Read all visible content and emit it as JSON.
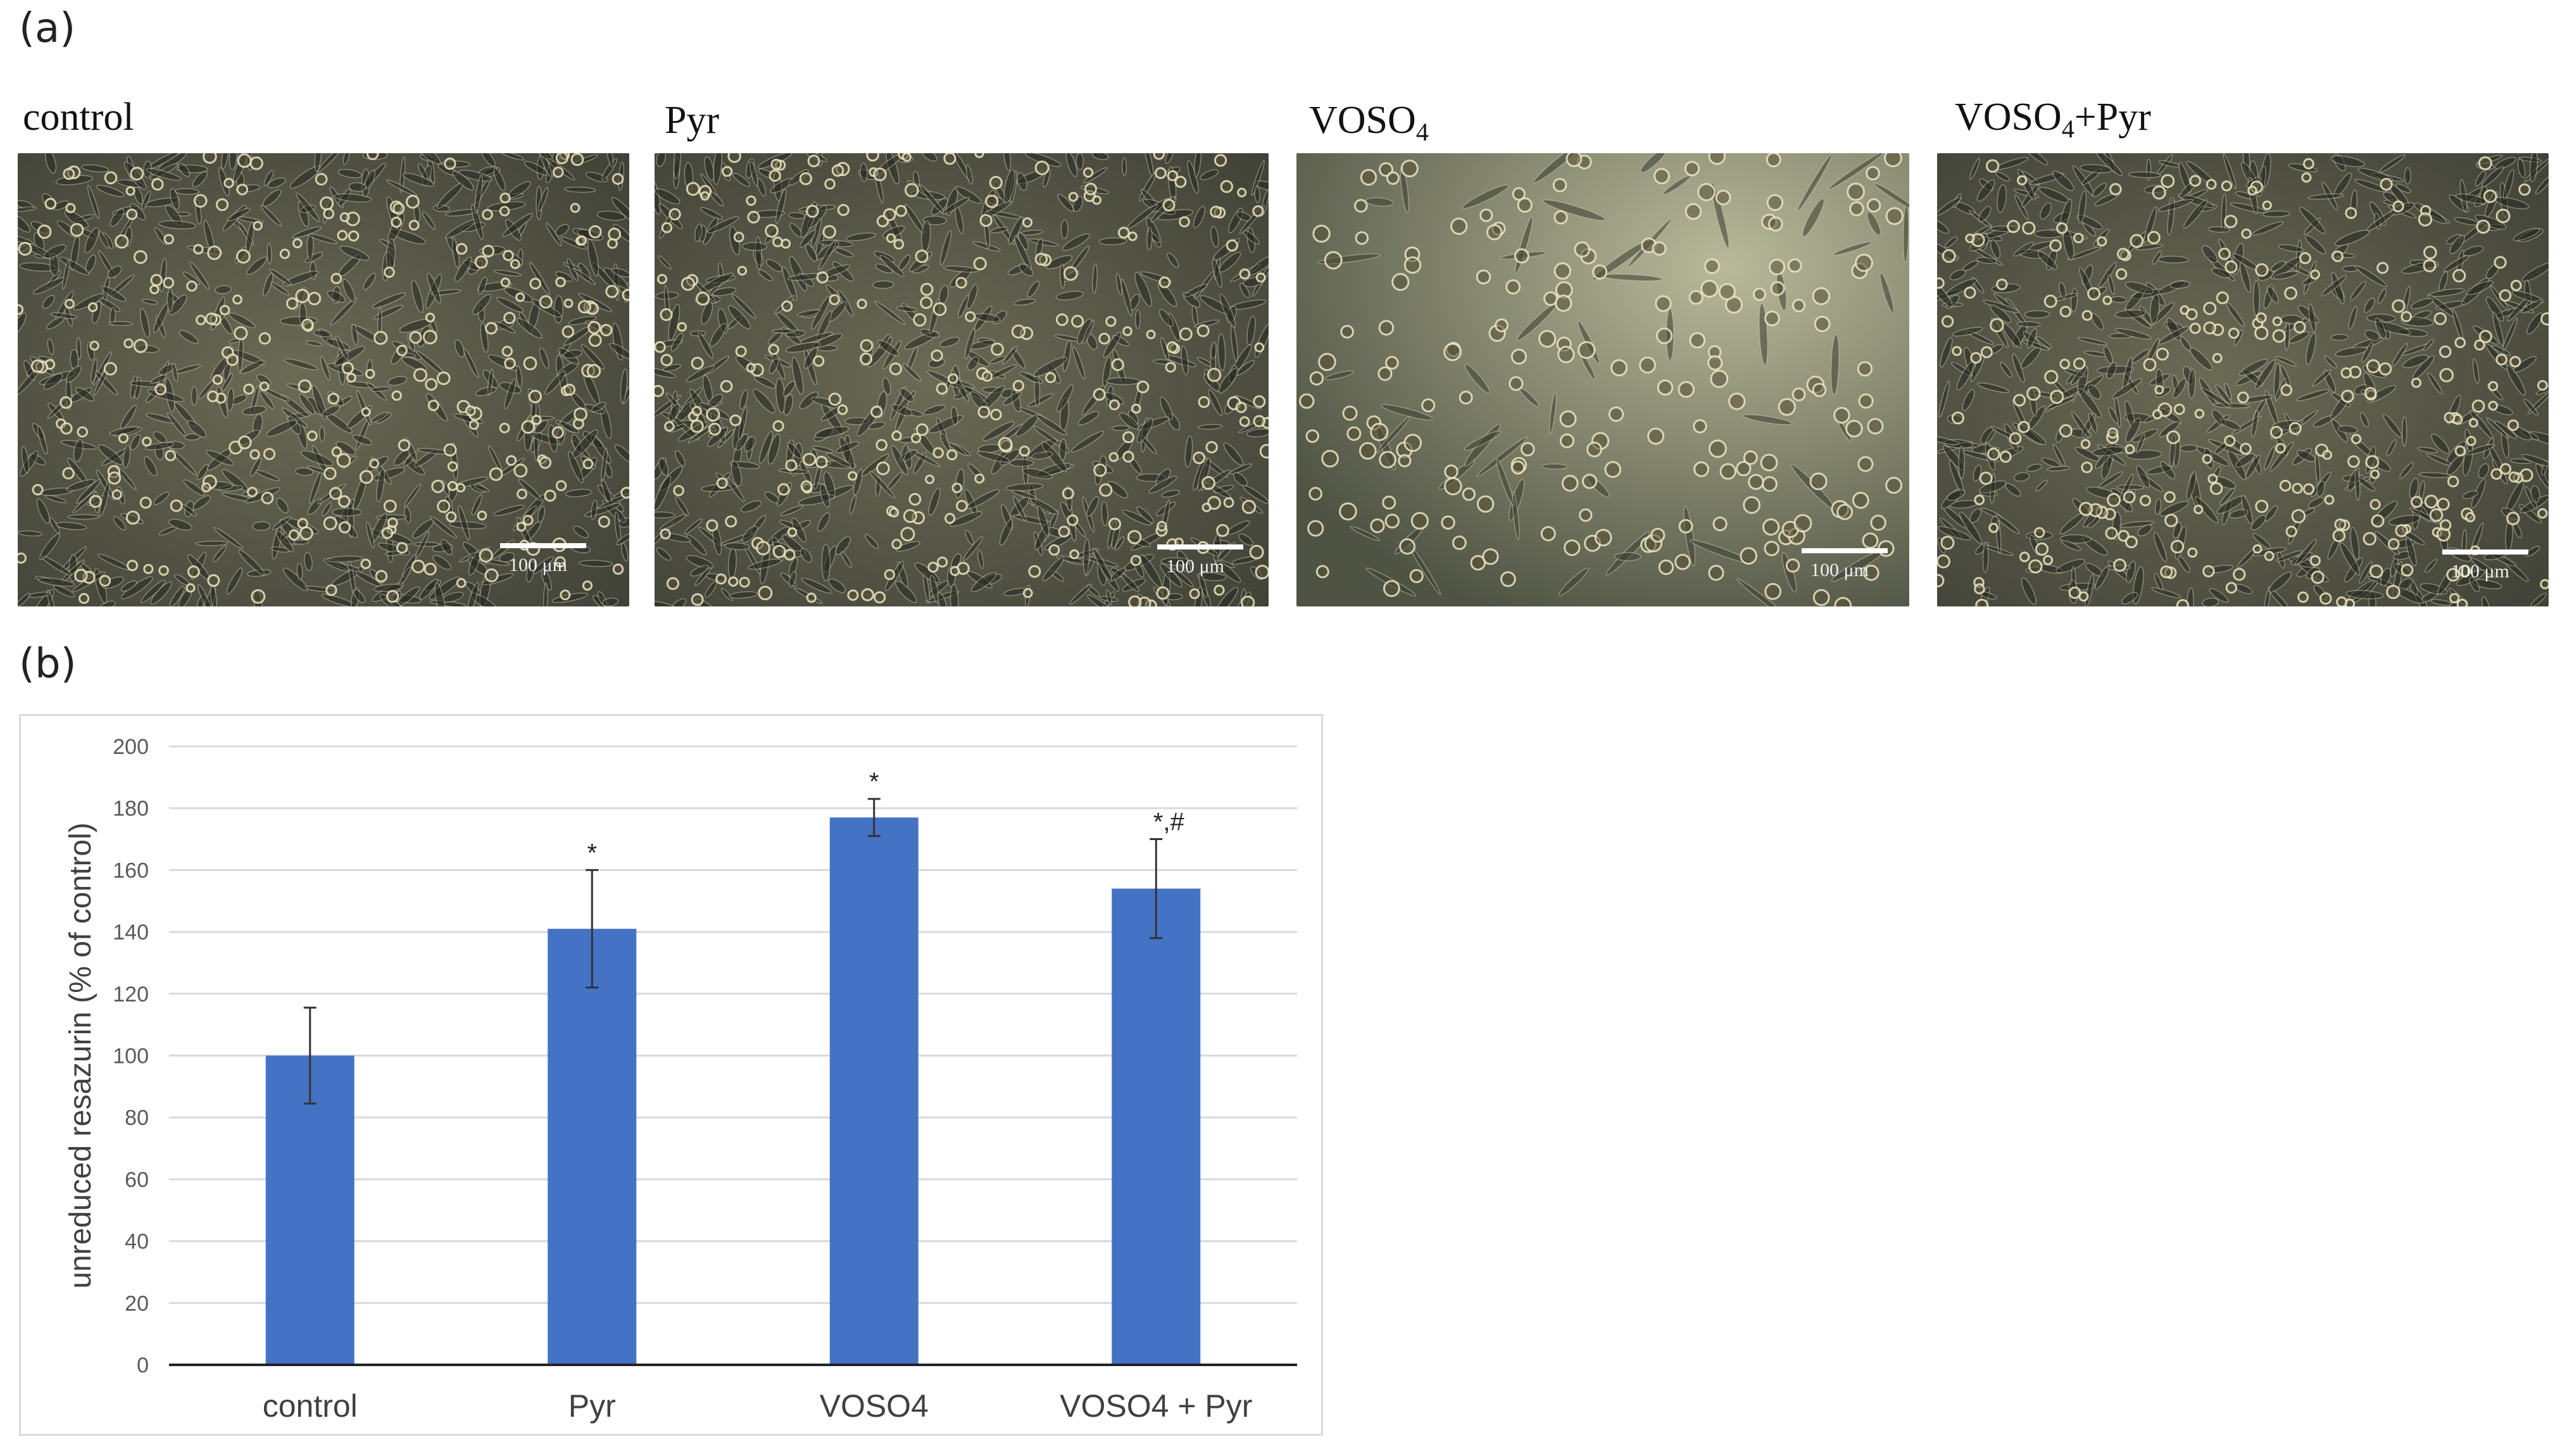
{
  "figure": {
    "panel_a_label": "(a)",
    "panel_b_label": "(b)",
    "images": [
      {
        "title": "control",
        "title_sub": "",
        "title_suffix": "",
        "scale_text": "100 μm",
        "condition": "confluent"
      },
      {
        "title": "Pyr",
        "title_sub": "",
        "title_suffix": "",
        "scale_text": "100 μm",
        "condition": "confluent"
      },
      {
        "title": "VOSO",
        "title_sub": "4",
        "title_suffix": "",
        "scale_text": "100 μm",
        "condition": "sparse"
      },
      {
        "title": "VOSO",
        "title_sub": "4",
        "title_suffix": "+Pyr",
        "scale_text": "100 μm",
        "condition": "confluent"
      }
    ]
  },
  "chart_data": {
    "type": "bar",
    "categories": [
      "control",
      "Pyr",
      "VOSO4",
      "VOSO4 + Pyr"
    ],
    "values": [
      100,
      141,
      177,
      154
    ],
    "errors": [
      15.5,
      19,
      6,
      16
    ],
    "annotations": [
      "",
      "*",
      "*",
      "*,#"
    ],
    "title": "",
    "xlabel": "",
    "ylabel": "unreduced resazurin (% of control)",
    "ylim": [
      0,
      200
    ],
    "yticks": [
      0,
      20,
      40,
      60,
      80,
      100,
      120,
      140,
      160,
      180,
      200
    ],
    "grid": true,
    "bar_color": "#4472C4",
    "grid_color": "#d9d9d9"
  }
}
